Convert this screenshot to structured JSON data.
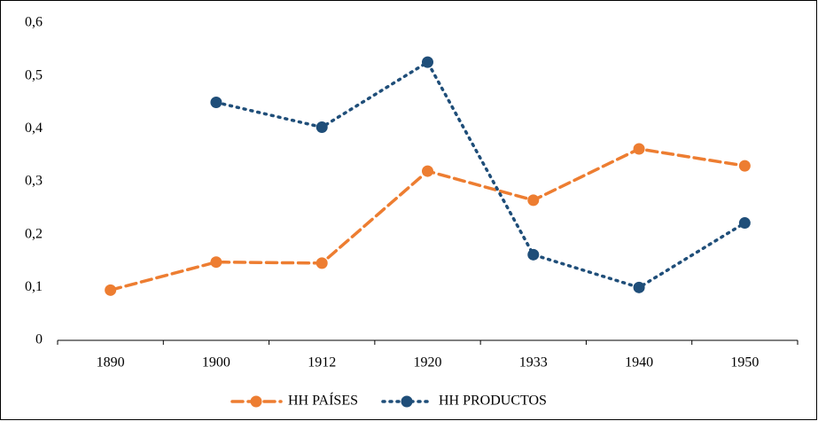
{
  "chart_data": {
    "type": "line",
    "categories": [
      "1890",
      "1900",
      "1912",
      "1920",
      "1933",
      "1940",
      "1950"
    ],
    "series": [
      {
        "name": "HH PAÍSES",
        "color": "#ed7d31",
        "dash": "dashed",
        "values": [
          0.095,
          0.148,
          0.146,
          0.32,
          0.265,
          0.362,
          0.33
        ]
      },
      {
        "name": "HH PRODUCTOS",
        "color": "#1f4e79",
        "dash": "dotted",
        "values": [
          null,
          0.45,
          0.403,
          0.526,
          0.162,
          0.1,
          0.222
        ]
      }
    ],
    "ylim": [
      0,
      0.6
    ],
    "yticks": [
      0,
      {
        "value": 0.1,
        "label": "0,1"
      },
      {
        "value": 0.2,
        "label": "0,2"
      },
      {
        "value": 0.3,
        "label": "0,3"
      },
      {
        "value": 0.4,
        "label": "0,4"
      },
      {
        "value": 0.5,
        "label": "0,5"
      },
      {
        "value": 0.6,
        "label": "0,6"
      }
    ],
    "grid": false,
    "legend": "bottom"
  }
}
